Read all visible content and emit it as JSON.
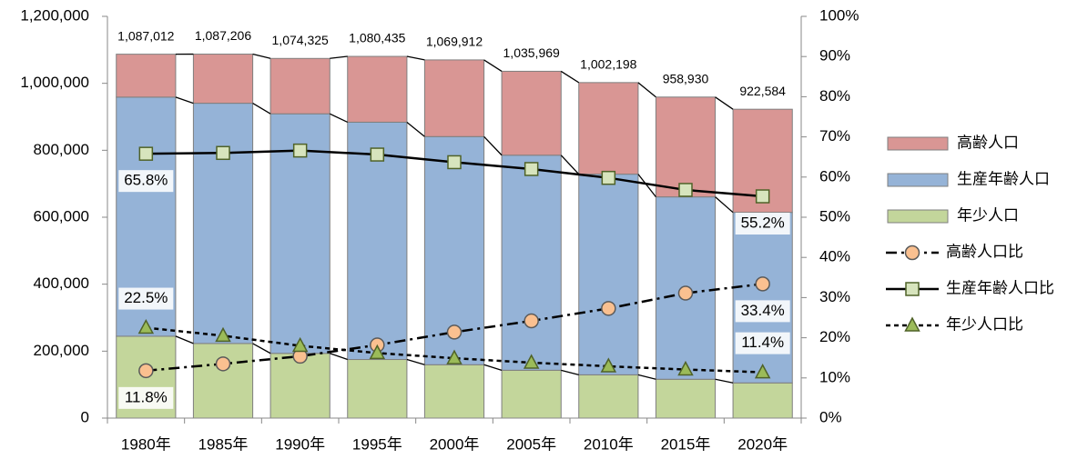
{
  "chart_data": {
    "type": "bar",
    "stacked": true,
    "categories": [
      "1980年",
      "1985年",
      "1990年",
      "1995年",
      "2000年",
      "2005年",
      "2010年",
      "2015年",
      "2020年"
    ],
    "ylim": [
      0,
      1200000
    ],
    "yticks": [
      0,
      {
        "value": 200000,
        "label": "200,000"
      },
      {
        "value": 400000,
        "label": "400,000"
      },
      {
        "value": 600000,
        "label": "600,000"
      },
      {
        "value": 800000,
        "label": "800,000"
      },
      {
        "value": 1000000,
        "label": "1,000,000"
      },
      {
        "value": 1200000,
        "label": "1,200,000"
      }
    ],
    "y2lim": [
      0,
      100
    ],
    "y2ticks": [
      {
        "value": 0,
        "label": "0%"
      },
      {
        "value": 10,
        "label": "10%"
      },
      {
        "value": 20,
        "label": "20%"
      },
      {
        "value": 30,
        "label": "30%"
      },
      {
        "value": 40,
        "label": "40%"
      },
      {
        "value": 50,
        "label": "50%"
      },
      {
        "value": 60,
        "label": "60%"
      },
      {
        "value": 70,
        "label": "70%"
      },
      {
        "value": 80,
        "label": "80%"
      },
      {
        "value": 90,
        "label": "90%"
      },
      {
        "value": 100,
        "label": "100%"
      }
    ],
    "totals": [
      1087012,
      1087206,
      1074325,
      1080435,
      1069912,
      1035969,
      1002198,
      958930,
      922584
    ],
    "total_labels": [
      "1,087,012",
      "1,087,206",
      "1,074,325",
      "1,080,435",
      "1,069,912",
      "1,035,969",
      "1,002,198",
      "958,930",
      "922,584"
    ],
    "legend": "right",
    "series": [
      {
        "name": "高齢人口",
        "type": "bar",
        "color": "#d99694",
        "values": [
          128267,
          146700,
          165400,
          196600,
          229000,
          250700,
          273600,
          298200,
          308143
        ]
      },
      {
        "name": "生産年齢人口",
        "type": "bar",
        "color": "#95b3d7",
        "values": [
          714167,
          717600,
          715500,
          708800,
          681500,
          642300,
          599300,
          544700,
          509267
        ]
      },
      {
        "name": "年少人口",
        "type": "bar",
        "color": "#c3d69b",
        "values": [
          244578,
          222906,
          193425,
          175035,
          159412,
          142969,
          129298,
          116030,
          105174
        ]
      },
      {
        "name": "高齢人口比",
        "type": "line",
        "axis": "y2",
        "color": "#000000",
        "marker": "circle",
        "marker_color": "#fac090",
        "dash": "dashdot",
        "values": [
          11.8,
          13.5,
          15.4,
          18.2,
          21.4,
          24.2,
          27.3,
          31.1,
          33.4
        ],
        "value_labels": [
          "11.8%",
          null,
          null,
          null,
          null,
          null,
          null,
          null,
          "33.4%"
        ]
      },
      {
        "name": "生産年齢人口比",
        "type": "line",
        "axis": "y2",
        "color": "#000000",
        "marker": "square",
        "marker_color": "#d7e4bd",
        "dash": "solid",
        "values": [
          65.8,
          66.0,
          66.6,
          65.6,
          63.7,
          62.0,
          59.8,
          56.8,
          55.2
        ],
        "value_labels": [
          "65.8%",
          null,
          null,
          null,
          null,
          null,
          null,
          null,
          "55.2%"
        ]
      },
      {
        "name": "年少人口比",
        "type": "line",
        "axis": "y2",
        "color": "#000000",
        "marker": "triangle",
        "marker_color": "#9bbb59",
        "dash": "dashed",
        "values": [
          22.5,
          20.5,
          18.0,
          16.2,
          14.9,
          13.8,
          12.9,
          12.1,
          11.4
        ],
        "value_labels": [
          "22.5%",
          null,
          null,
          null,
          null,
          null,
          null,
          null,
          "11.4%"
        ]
      }
    ]
  }
}
